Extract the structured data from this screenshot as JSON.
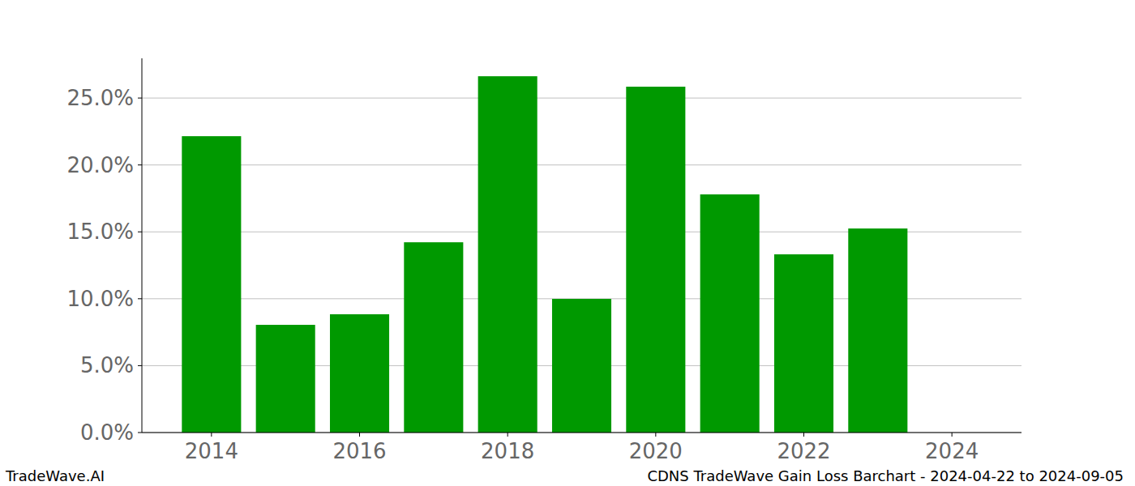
{
  "chart_data": {
    "type": "bar",
    "title": "CDNS TradeWave Gain Loss Barchart - 2024-04-22 to 2024-09-05",
    "source": "TradeWave.AI",
    "x": [
      2014,
      2015,
      2016,
      2017,
      2018,
      2019,
      2020,
      2021,
      2022,
      2023,
      2024
    ],
    "values": [
      22.15,
      8.05,
      8.84,
      14.22,
      26.63,
      9.99,
      25.85,
      17.8,
      13.32,
      15.25,
      0
    ],
    "color": "#009900",
    "xlim": [
      2013.06,
      2024.94
    ],
    "xticks": [
      2014,
      2016,
      2018,
      2020,
      2022,
      2024
    ],
    "ylim": [
      0,
      27.97
    ],
    "yticks": [
      {
        "value": 0,
        "label": "0.0%"
      },
      {
        "value": 5,
        "label": "5.0%"
      },
      {
        "value": 10,
        "label": "10.0%"
      },
      {
        "value": 15,
        "label": "15.0%"
      },
      {
        "value": 20,
        "label": "20.0%"
      },
      {
        "value": 25,
        "label": "25.0%"
      }
    ],
    "grid": true
  }
}
